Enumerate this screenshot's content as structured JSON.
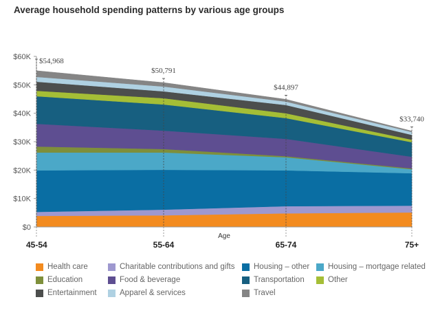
{
  "chart_data": {
    "type": "area",
    "stacked": true,
    "title": "Average household spending patterns by various age groups",
    "xlabel": "Age",
    "ylabel": "",
    "categories": [
      "45-54",
      "55-64",
      "65-74",
      "75+"
    ],
    "ylim": [
      0,
      60000
    ],
    "yticks": [
      0,
      10000,
      20000,
      30000,
      40000,
      50000,
      60000
    ],
    "ytick_labels": [
      "$0",
      "$10K",
      "$20K",
      "$30K",
      "$40K",
      "$50K",
      "$60K"
    ],
    "totals": [
      54968,
      50791,
      44897,
      33740
    ],
    "total_labels": [
      "$54,968",
      "$50,791",
      "$44,897",
      "$33,740"
    ],
    "grid": false,
    "legend_position": "bottom",
    "series": [
      {
        "name": "Health care",
        "color": "#F38B1F",
        "values": [
          3900,
          4100,
          4800,
          5100
        ]
      },
      {
        "name": "Charitable contributions and gifts",
        "color": "#9E98CF",
        "values": [
          1400,
          2000,
          2500,
          2400
        ]
      },
      {
        "name": "Housing – other",
        "color": "#0A6EA3",
        "values": [
          14600,
          14000,
          12600,
          11400
        ]
      },
      {
        "name": "Housing – mortgage related",
        "color": "#4BA8C8",
        "values": [
          6300,
          6100,
          4600,
          1400
        ]
      },
      {
        "name": "Education",
        "color": "#7E8F3B",
        "values": [
          2100,
          1200,
          400,
          300
        ]
      },
      {
        "name": "Food & beverage",
        "color": "#5E4E91",
        "values": [
          8000,
          6500,
          6100,
          4100
        ]
      },
      {
        "name": "Transportation",
        "color": "#175F80",
        "values": [
          9700,
          9200,
          7300,
          5100
        ]
      },
      {
        "name": "Other",
        "color": "#A5BE36",
        "values": [
          1900,
          2200,
          1700,
          900
        ]
      },
      {
        "name": "Entertainment",
        "color": "#4C4E4D",
        "values": [
          3200,
          2400,
          2900,
          1700
        ]
      },
      {
        "name": "Apparel & services",
        "color": "#AFD1E2",
        "values": [
          1700,
          1700,
          1200,
          1000
        ]
      },
      {
        "name": "Travel",
        "color": "#858585",
        "values": [
          2168,
          1391,
          797,
          340
        ]
      }
    ],
    "legend_order": [
      "Health care",
      "Charitable contributions and gifts",
      "Housing – other",
      "Housing – mortgage related",
      "Education",
      "Food & beverage",
      "Transportation",
      "Other",
      "Entertainment",
      "Apparel & services",
      "Travel"
    ]
  }
}
